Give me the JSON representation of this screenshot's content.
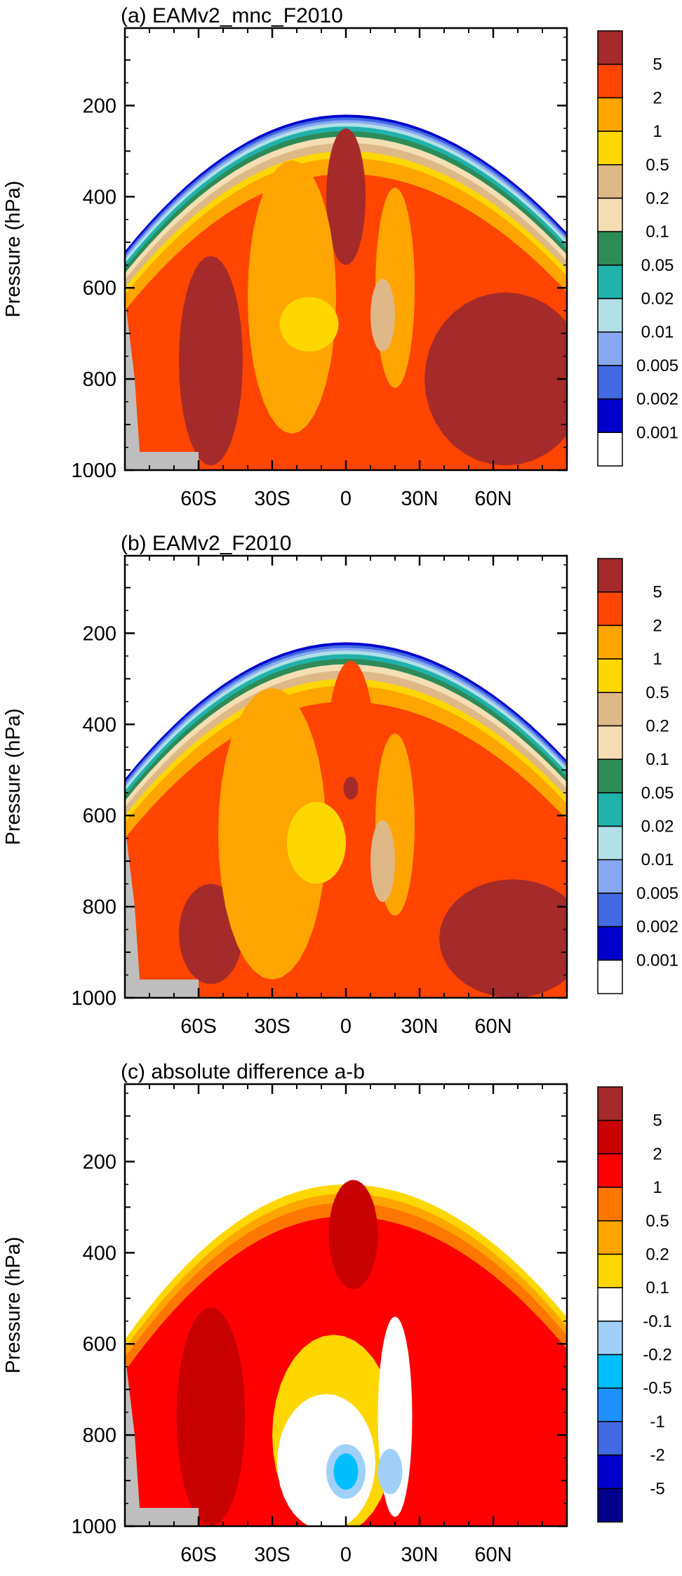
{
  "chart_data": [
    {
      "type": "heatmap",
      "title": "(a) EAMv2_mnc_F2010",
      "ylabel": "Pressure (hPa)",
      "xlabel": "",
      "x_ticks": [
        "60S",
        "30S",
        "0",
        "30N",
        "60N"
      ],
      "x_tick_values": [
        -60,
        -30,
        0,
        30,
        60
      ],
      "xlim": [
        -90,
        90
      ],
      "y_ticks": [
        "200",
        "400",
        "600",
        "800",
        "1000"
      ],
      "y_tick_values": [
        200,
        400,
        600,
        800,
        1000
      ],
      "ylim": [
        1000,
        30
      ],
      "colorbar": {
        "labels": [
          "5",
          "2",
          "1",
          "0.5",
          "0.2",
          "0.1",
          "0.05",
          "0.02",
          "0.01",
          "0.005",
          "0.002",
          "0.001"
        ],
        "colors": [
          "#a52a2a",
          "#ff4500",
          "#ffa500",
          "#ffd700",
          "#deb887",
          "#f5deb3",
          "#2e8b57",
          "#20b2aa",
          "#b0e0e6",
          "#87a8f0",
          "#4169e1",
          "#0000cd",
          "#ffffff"
        ]
      }
    },
    {
      "type": "heatmap",
      "title": "(b) EAMv2_F2010",
      "ylabel": "Pressure (hPa)",
      "xlabel": "",
      "x_ticks": [
        "60S",
        "30S",
        "0",
        "30N",
        "60N"
      ],
      "x_tick_values": [
        -60,
        -30,
        0,
        30,
        60
      ],
      "xlim": [
        -90,
        90
      ],
      "y_ticks": [
        "200",
        "400",
        "600",
        "800",
        "1000"
      ],
      "y_tick_values": [
        200,
        400,
        600,
        800,
        1000
      ],
      "ylim": [
        1000,
        30
      ],
      "colorbar": {
        "labels": [
          "5",
          "2",
          "1",
          "0.5",
          "0.2",
          "0.1",
          "0.05",
          "0.02",
          "0.01",
          "0.005",
          "0.002",
          "0.001"
        ],
        "colors": [
          "#a52a2a",
          "#ff4500",
          "#ffa500",
          "#ffd700",
          "#deb887",
          "#f5deb3",
          "#2e8b57",
          "#20b2aa",
          "#b0e0e6",
          "#87a8f0",
          "#4169e1",
          "#0000cd",
          "#ffffff"
        ]
      }
    },
    {
      "type": "heatmap",
      "title": "(c) absolute difference a-b",
      "ylabel": "Pressure (hPa)",
      "xlabel": "",
      "x_ticks": [
        "60S",
        "30S",
        "0",
        "30N",
        "60N"
      ],
      "x_tick_values": [
        -60,
        -30,
        0,
        30,
        60
      ],
      "xlim": [
        -90,
        90
      ],
      "y_ticks": [
        "200",
        "400",
        "600",
        "800",
        "1000"
      ],
      "y_tick_values": [
        200,
        400,
        600,
        800,
        1000
      ],
      "ylim": [
        1000,
        30
      ],
      "colorbar": {
        "labels": [
          "5",
          "2",
          "1",
          "0.5",
          "0.2",
          "0.1",
          "-0.1",
          "-0.2",
          "-0.5",
          "-1",
          "-2",
          "-5"
        ],
        "colors": [
          "#a52a2a",
          "#c80000",
          "#ff0000",
          "#ff7700",
          "#ffa500",
          "#ffd700",
          "#ffffff",
          "#a0d0f8",
          "#00bfff",
          "#1e90ff",
          "#4169e1",
          "#0000cd",
          "#00008b"
        ]
      }
    }
  ]
}
